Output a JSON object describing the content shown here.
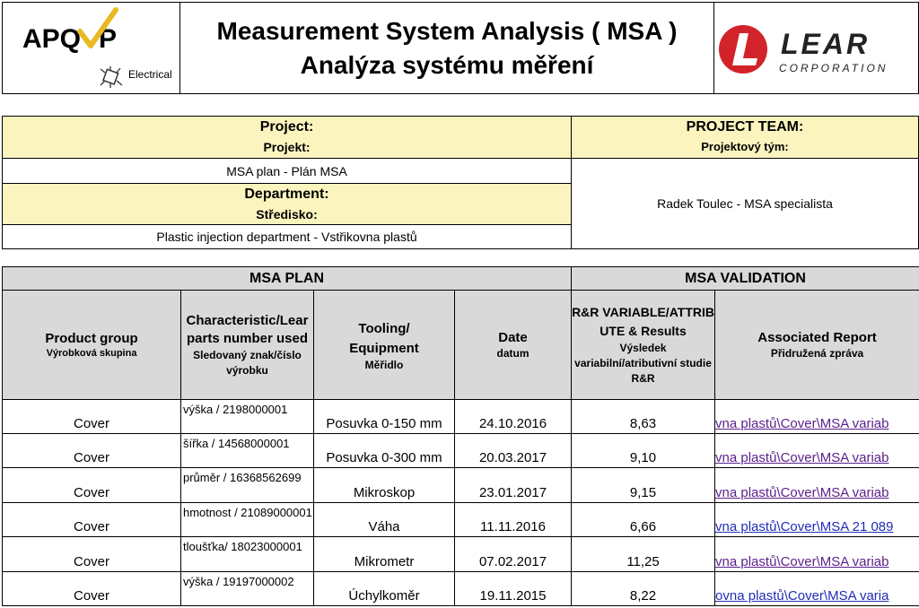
{
  "header": {
    "logo_left_text": "APQ",
    "logo_left_p": "P",
    "logo_left_sub": "Electrical",
    "title_en": "Measurement System Analysis ( MSA )",
    "title_cz": "Analýza systému měření",
    "logo_right_text": "LEAR",
    "logo_right_sub": "CORPORATION"
  },
  "project": {
    "project_label_en": "Project:",
    "project_label_cz": "Projekt:",
    "project_value": "MSA plan - Plán MSA",
    "department_label_en": "Department:",
    "department_label_cz": "Středisko:",
    "department_value": "Plastic injection department - Vstřikovna plastů",
    "team_label_en": "PROJECT TEAM:",
    "team_label_cz": "Projektový tým:",
    "team_value": "Radek Toulec - MSA specialista"
  },
  "table": {
    "section_plan": "MSA PLAN",
    "section_validation": "MSA VALIDATION",
    "headers": {
      "product_en": "Product group",
      "product_cz": "Výrobková skupina",
      "char_en": "Characteristic/Lear parts number used",
      "char_cz": "Sledovaný znak/číslo výrobku",
      "tool_en": "Tooling/ Equipment",
      "tool_cz": "Měřidlo",
      "date_en": "Date",
      "date_cz": "datum",
      "rr_en": "R&R VARIABLE/ATTRIBUTE & Results",
      "rr_cz": "Výsledek variabilní/atributivní studie R&R",
      "report_en": "Associated Report",
      "report_cz": "Přidružená zpráva"
    },
    "rows": [
      {
        "product": "Cover",
        "characteristic": "výška / 2198000001",
        "tool": "Posuvka 0-150 mm",
        "date": "24.10.2016",
        "result": "8,63",
        "report": "vna plastů\\Cover\\MSA variab"
      },
      {
        "product": "Cover",
        "characteristic": "šířka / 14568000001",
        "tool": "Posuvka 0-300 mm",
        "date": "20.03.2017",
        "result": "9,10",
        "report": "vna plastů\\Cover\\MSA variab"
      },
      {
        "product": "Cover",
        "characteristic": "průměr / 16368562699",
        "tool": "Mikroskop",
        "date": "23.01.2017",
        "result": "9,15",
        "report": "vna plastů\\Cover\\MSA variab"
      },
      {
        "product": "Cover",
        "characteristic": "hmotnost / 21089000001",
        "tool": "Váha",
        "date": "11.11.2016",
        "result": "6,66",
        "report": "vna plastů\\Cover\\MSA 21 089"
      },
      {
        "product": "Cover",
        "characteristic": "tloušťka/ 18023000001",
        "tool": "Mikrometr",
        "date": "07.02.2017",
        "result": "11,25",
        "report": "vna plastů\\Cover\\MSA variab"
      },
      {
        "product": "Cover",
        "characteristic": "výška / 19197000002",
        "tool": "Úchylkoměr",
        "date": "19.11.2015",
        "result": "8,22",
        "report": "ovna plastů\\Cover\\MSA varia"
      }
    ]
  },
  "colors": {
    "yellow": "#fcf4bf",
    "gray": "#d9d9d9",
    "lear_red": "#d2232a",
    "link_purple": "#5b1f8a",
    "link_blue": "#1f2db8",
    "apqp_check": "#e8b923"
  }
}
